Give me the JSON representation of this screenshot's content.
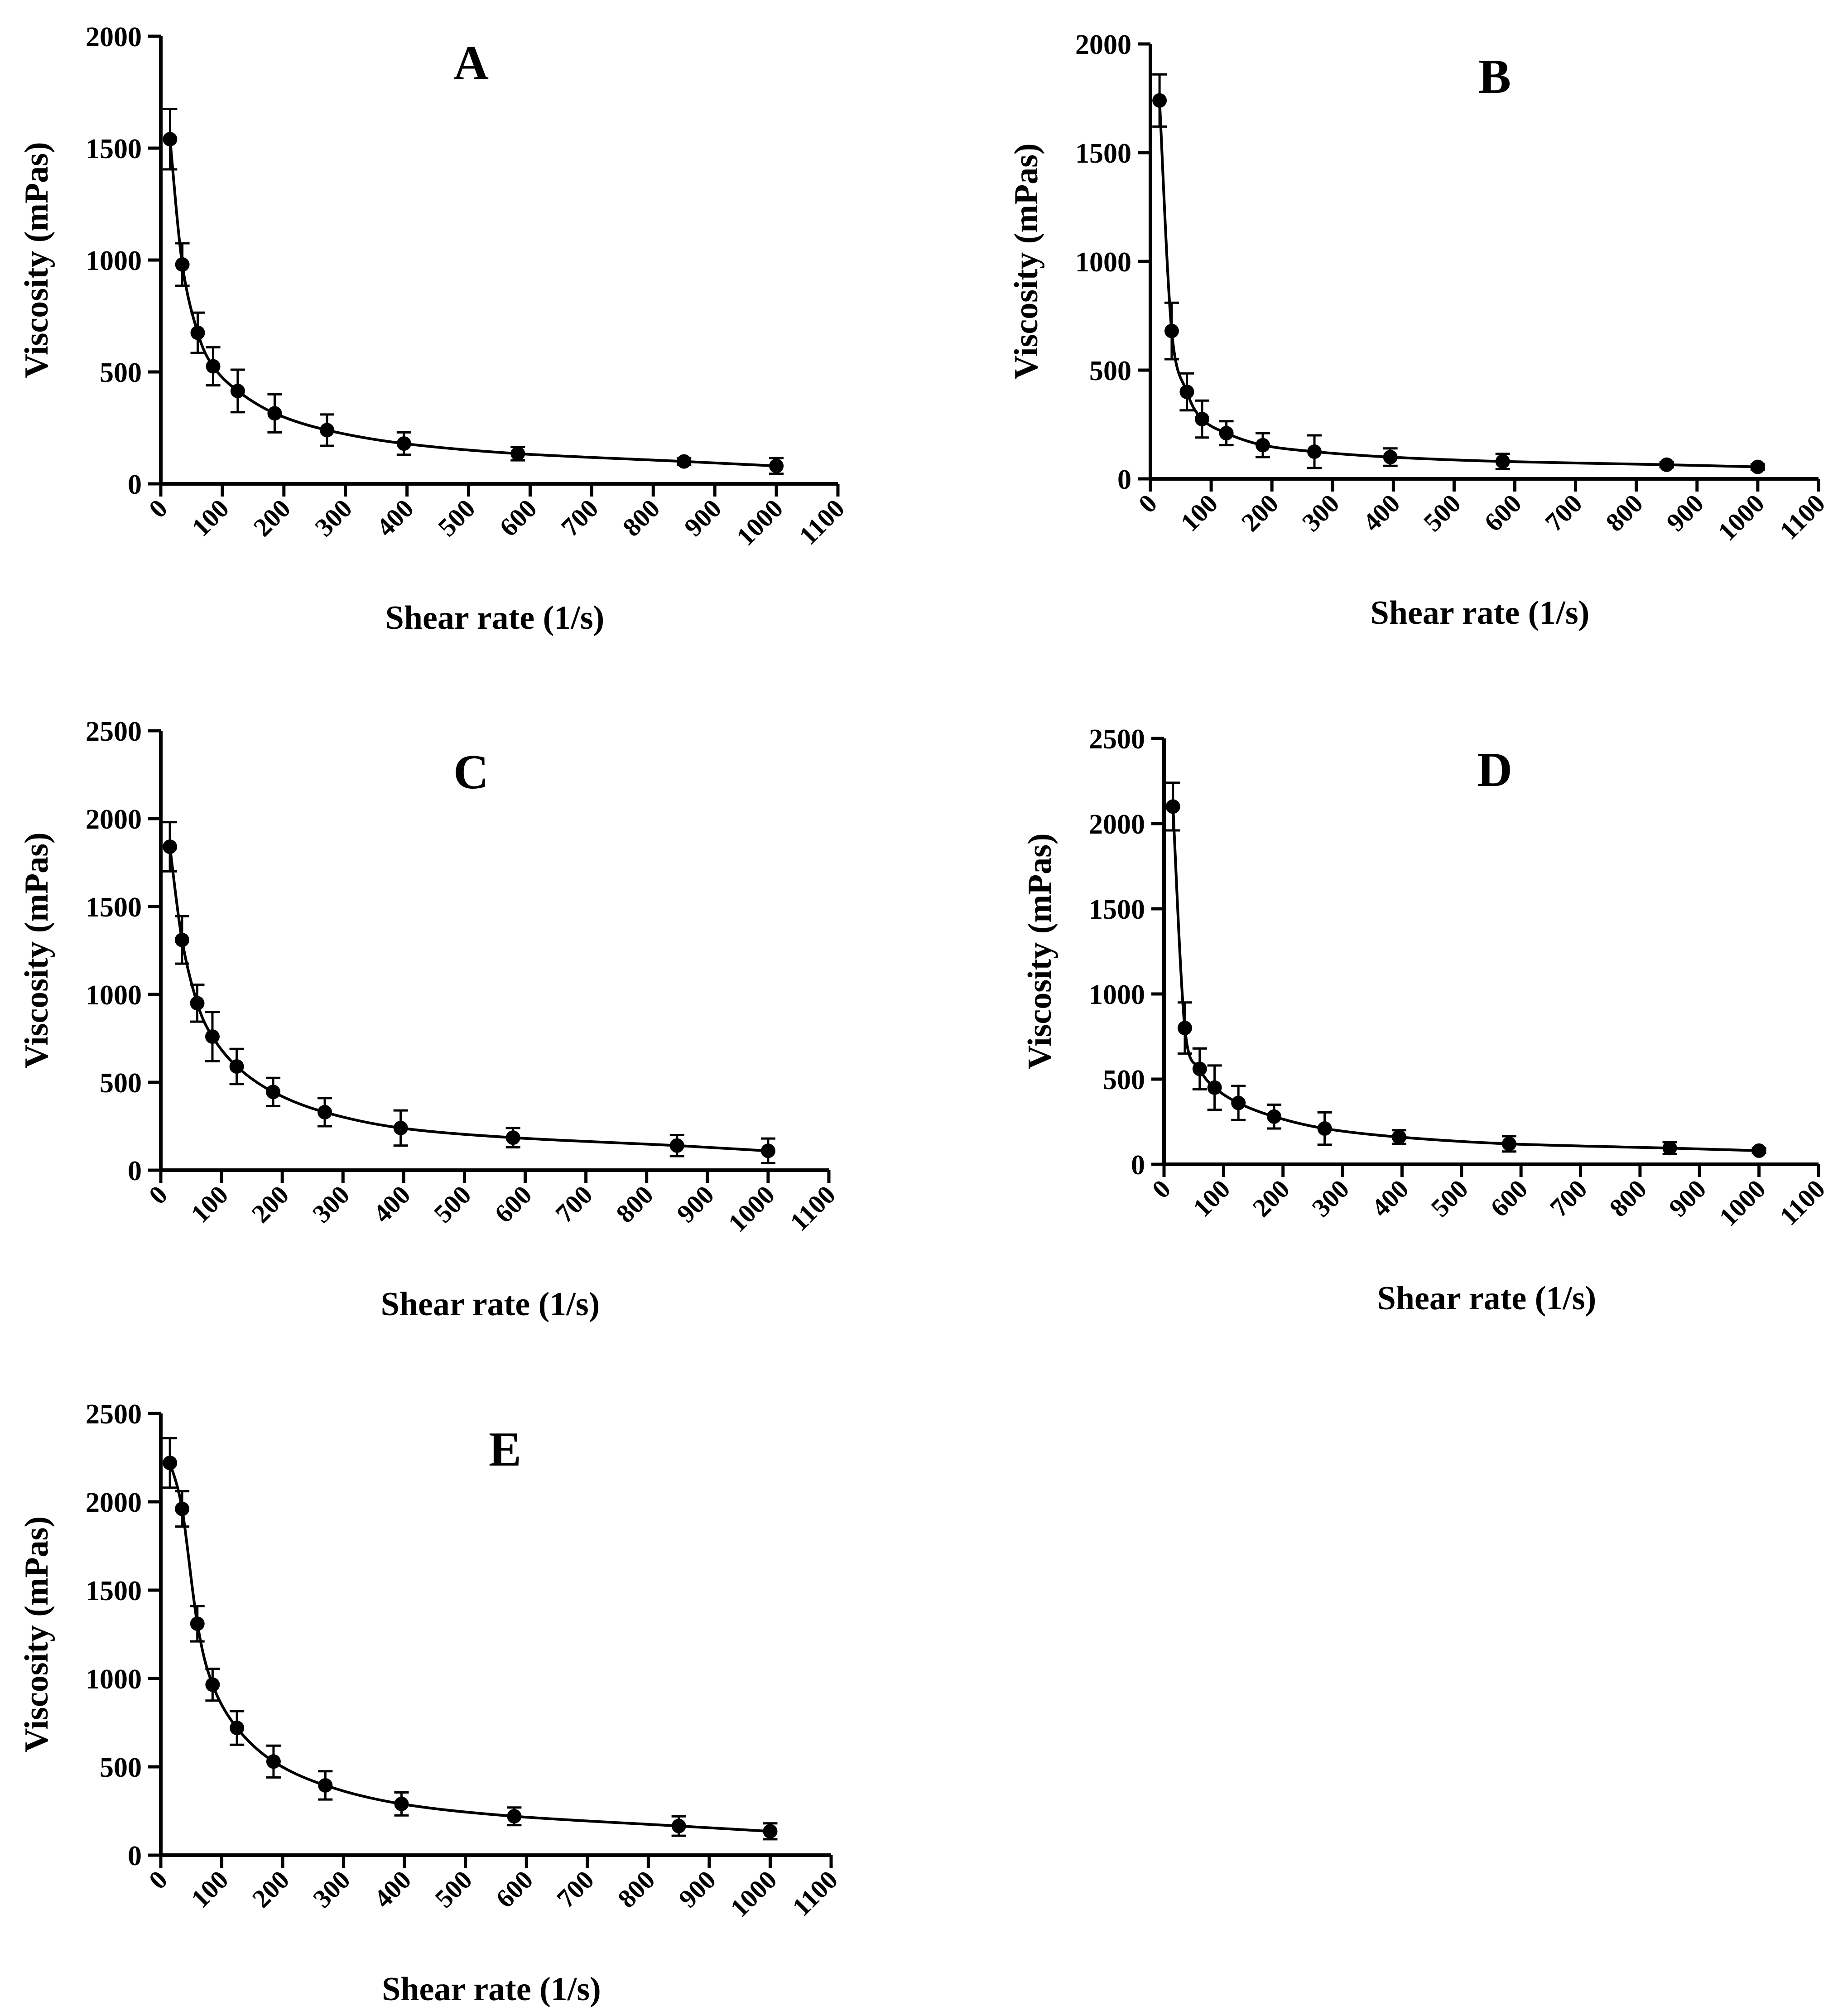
{
  "chart_data": [
    {
      "type": "line",
      "panel_label": "A",
      "xlabel": "Shear rate (1/s)",
      "ylabel": "Viscosity (mPas)",
      "xlim": [
        0,
        1100
      ],
      "ylim": [
        0,
        2000
      ],
      "x_ticks": [
        "0",
        "100",
        "200",
        "300",
        "400",
        "500",
        "600",
        "700",
        "800",
        "900",
        "1000",
        "1100"
      ],
      "y_ticks": [
        "0",
        "500",
        "1000",
        "1500",
        "2000"
      ],
      "x": [
        15,
        35,
        60,
        85,
        125,
        185,
        270,
        395,
        580,
        850,
        1000
      ],
      "y": [
        1540,
        980,
        675,
        525,
        415,
        315,
        240,
        180,
        135,
        100,
        80
      ],
      "err": [
        135,
        95,
        90,
        85,
        95,
        85,
        70,
        50,
        30,
        15,
        35
      ]
    },
    {
      "type": "line",
      "panel_label": "B",
      "xlabel": "Shear rate (1/s)",
      "ylabel": "Viscosity (mPas)",
      "xlim": [
        0,
        1100
      ],
      "ylim": [
        0,
        2000
      ],
      "x_ticks": [
        "0",
        "100",
        "200",
        "300",
        "400",
        "500",
        "600",
        "700",
        "800",
        "900",
        "1000",
        "1100"
      ],
      "y_ticks": [
        "0",
        "500",
        "1000",
        "1500",
        "2000"
      ],
      "x": [
        15,
        35,
        60,
        85,
        125,
        185,
        270,
        395,
        580,
        850,
        1000
      ],
      "y": [
        1740,
        680,
        400,
        275,
        210,
        155,
        125,
        100,
        80,
        65,
        55
      ],
      "err": [
        120,
        130,
        85,
        85,
        55,
        55,
        75,
        40,
        35,
        12,
        12
      ]
    },
    {
      "type": "line",
      "panel_label": "C",
      "xlabel": "Shear rate (1/s)",
      "ylabel": "Viscosity (mPas)",
      "xlim": [
        0,
        1100
      ],
      "ylim": [
        0,
        2500
      ],
      "x_ticks": [
        "0",
        "100",
        "200",
        "300",
        "400",
        "500",
        "600",
        "700",
        "800",
        "900",
        "1000",
        "1100"
      ],
      "y_ticks": [
        "0",
        "500",
        "1000",
        "1500",
        "2000",
        "2500"
      ],
      "x": [
        15,
        35,
        60,
        85,
        125,
        185,
        270,
        395,
        580,
        850,
        1000
      ],
      "y": [
        1840,
        1310,
        950,
        760,
        590,
        445,
        330,
        240,
        185,
        140,
        110
      ],
      "err": [
        140,
        135,
        105,
        140,
        100,
        80,
        80,
        100,
        55,
        60,
        70
      ]
    },
    {
      "type": "line",
      "panel_label": "D",
      "xlabel": "Shear rate (1/s)",
      "ylabel": "Viscosity (mPas)",
      "xlim": [
        0,
        1100
      ],
      "ylim": [
        0,
        2500
      ],
      "x_ticks": [
        "0",
        "100",
        "200",
        "300",
        "400",
        "500",
        "600",
        "700",
        "800",
        "900",
        "1000",
        "1100"
      ],
      "y_ticks": [
        "0",
        "500",
        "1000",
        "1500",
        "2000",
        "2500"
      ],
      "x": [
        15,
        35,
        60,
        85,
        125,
        185,
        270,
        395,
        580,
        850,
        1000
      ],
      "y": [
        2100,
        800,
        560,
        450,
        360,
        280,
        210,
        160,
        120,
        95,
        80
      ],
      "err": [
        140,
        150,
        120,
        130,
        100,
        70,
        95,
        40,
        45,
        35,
        15
      ]
    },
    {
      "type": "line",
      "panel_label": "E",
      "xlabel": "Shear rate (1/s)",
      "ylabel": "Viscosity (mPas)",
      "xlim": [
        0,
        1100
      ],
      "ylim": [
        0,
        2500
      ],
      "x_ticks": [
        "0",
        "100",
        "200",
        "300",
        "400",
        "500",
        "600",
        "700",
        "800",
        "900",
        "1000",
        "1100"
      ],
      "y_ticks": [
        "0",
        "500",
        "1000",
        "1500",
        "2000",
        "2500"
      ],
      "x": [
        15,
        35,
        60,
        85,
        125,
        185,
        270,
        395,
        580,
        850,
        1000
      ],
      "y": [
        2220,
        1960,
        1310,
        965,
        720,
        530,
        395,
        290,
        220,
        165,
        135
      ],
      "err": [
        140,
        100,
        100,
        90,
        95,
        90,
        80,
        65,
        50,
        55,
        45
      ]
    }
  ]
}
